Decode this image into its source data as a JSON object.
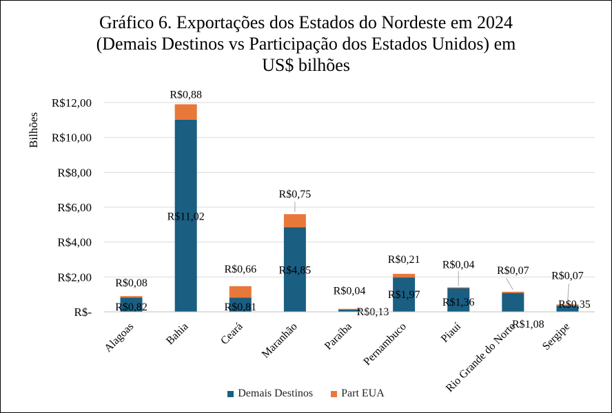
{
  "chart_data": {
    "type": "bar",
    "stacked": true,
    "title_lines": [
      "Gráfico 6. Exportações dos Estados do Nordeste  em 2024",
      "(Demais Destinos vs Participação dos Estados Unidos) em",
      "US$ bilhões"
    ],
    "ylabel": "Bilhões",
    "xlabel": "",
    "ylim": [
      0,
      12
    ],
    "yticks": [
      0,
      2,
      4,
      6,
      8,
      10,
      12
    ],
    "ytick_labels": [
      "R$-",
      "R$2,00",
      "R$4,00",
      "R$6,00",
      "R$8,00",
      "R$10,00",
      "R$12,00"
    ],
    "grid": true,
    "legend_position": "bottom",
    "categories": [
      "Alagoas",
      "Bahia",
      "Ceará",
      "Maranhão",
      "Paraíba",
      "Pernambuco",
      "Piauí",
      "Rio Grande do Norte",
      "Sergipe"
    ],
    "series": [
      {
        "name": "Demais Destinos",
        "color": "#1a5e82",
        "values": [
          0.82,
          11.02,
          0.81,
          4.85,
          0.13,
          1.97,
          1.36,
          1.08,
          0.35
        ],
        "labels": [
          "R$0,82",
          "R$11,02",
          "R$0,81",
          "R$4,85",
          "R$0,13",
          "R$1,97",
          "R$1,36",
          "R$1,08",
          "R$0,35"
        ]
      },
      {
        "name": "Part EUA",
        "color": "#e8773a",
        "values": [
          0.08,
          0.88,
          0.66,
          0.75,
          0.04,
          0.21,
          0.04,
          0.07,
          0.07
        ],
        "labels": [
          "R$0,08",
          "R$0,88",
          "R$0,66",
          "R$0,75",
          "R$0,04",
          "R$0,21",
          "R$0,04",
          "R$0,07",
          "R$0,07"
        ]
      }
    ]
  }
}
